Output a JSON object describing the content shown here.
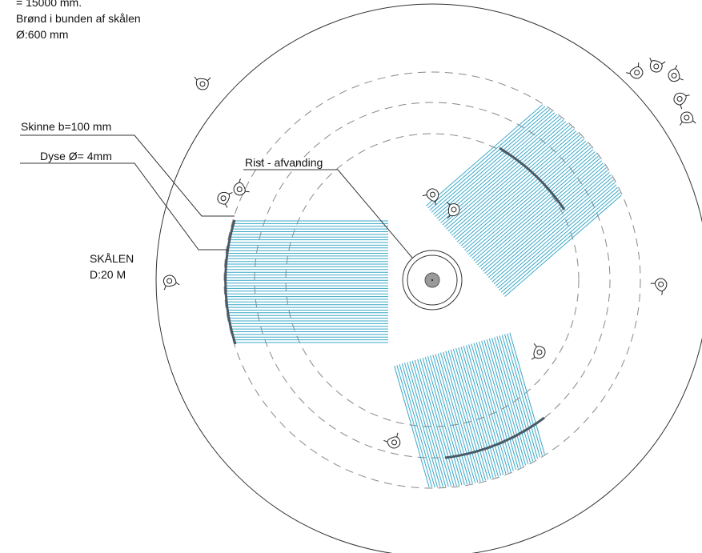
{
  "notes": {
    "line1": "= 15000 mm.",
    "line2": "Brønd i bunden af skålen",
    "line3": "Ø:600 mm"
  },
  "labels": {
    "rail": "Skinne b=100 mm",
    "nozzle": "Dyse Ø= 4mm",
    "grate": "Rist - afvanding",
    "bowl_name": "SKÅLEN",
    "bowl_diameter": "D:20 M"
  },
  "colors": {
    "spray": "#3aa8c8",
    "line": "#333333",
    "dashed": "#888888",
    "center": "#9a9a9a",
    "rail": "#4a5a66"
  },
  "icons": [
    "person-icon"
  ]
}
